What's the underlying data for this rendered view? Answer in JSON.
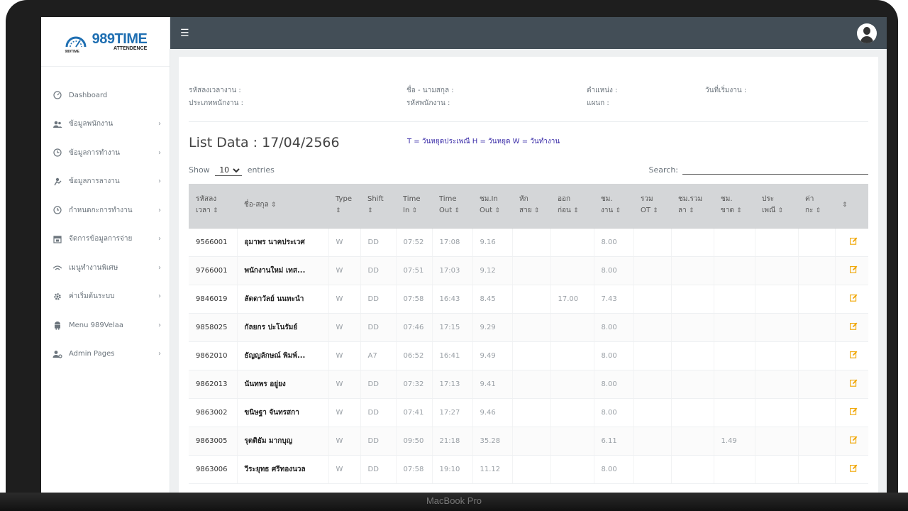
{
  "brand": {
    "name": "989TIME",
    "sub": "ATTENDENCE",
    "mini": "989TIME",
    "device": "MacBook Pro"
  },
  "sidebar": {
    "items": [
      {
        "label": "Dashboard",
        "icon": "dashboard-icon",
        "chevron": ""
      },
      {
        "label": "ข้อมูลพนักงาน",
        "icon": "users-icon",
        "chevron": "›"
      },
      {
        "label": "ข้อมูลการทำงาน",
        "icon": "clock-icon",
        "chevron": "›"
      },
      {
        "label": "ข้อมูลการลางาน",
        "icon": "leave-icon",
        "chevron": "›"
      },
      {
        "label": "กำหนดกะการทำงาน",
        "icon": "schedule-icon",
        "chevron": "›"
      },
      {
        "label": "จัดการข้อมูลการจ่าย",
        "icon": "calendar-icon",
        "chevron": "›"
      },
      {
        "label": "เมนูทำงานพิเศษ",
        "icon": "wifi-icon",
        "chevron": "›"
      },
      {
        "label": "ค่าเริ่มต้นระบบ",
        "icon": "gear-icon",
        "chevron": "›"
      },
      {
        "label": "Menu 989Velaa",
        "icon": "android-icon",
        "chevron": "›"
      },
      {
        "label": "Admin Pages",
        "icon": "admin-icon",
        "chevron": "›"
      }
    ]
  },
  "info": {
    "timecode": "รหัสลงเวลางาน :",
    "emptype": "ประเภทพนักงาน :",
    "fullname": "ชื่อ - นามสกุล :",
    "empid": "รหัสพนักงาน :",
    "position": "ตำแหน่ง :",
    "dept": "แผนก :",
    "startdate": "วันที่เริ่มงาน :"
  },
  "list": {
    "title": "List Data : 17/04/2566",
    "legend": "T = วันหยุดประเพณี   H = วันหยุด   W = วันทำงาน"
  },
  "controls": {
    "show_label": "Show",
    "show_value": "10",
    "entries_label": "entries",
    "search_label": "Search:"
  },
  "table": {
    "headers": [
      [
        "รหัสลง",
        "เวลา"
      ],
      [
        "",
        "ชื่อ-สกุล"
      ],
      [
        "Type",
        ""
      ],
      [
        "Shift",
        ""
      ],
      [
        "Time",
        "In"
      ],
      [
        "Time",
        "Out"
      ],
      [
        "ชม.In",
        "Out"
      ],
      [
        "หัก",
        "สาย"
      ],
      [
        "ออก",
        "ก่อน"
      ],
      [
        "ชม.",
        "งาน"
      ],
      [
        "รวม",
        "OT"
      ],
      [
        "ชม.รวม",
        "ลา"
      ],
      [
        "ชม.",
        "ขาด"
      ],
      [
        "ประ",
        "เพณี"
      ],
      [
        "ค่า",
        "กะ"
      ],
      [
        "",
        ""
      ]
    ],
    "sort_glyph": "⇕",
    "rows": [
      [
        "9566001",
        "อุมาพร นาคประเวศ",
        "W",
        "DD",
        "07:52",
        "17:08",
        "9.16",
        "",
        "",
        "8.00",
        "",
        "",
        "",
        "",
        ""
      ],
      [
        "9766001",
        "พนักงานใหม่ เทส...",
        "W",
        "DD",
        "07:51",
        "17:03",
        "9.12",
        "",
        "",
        "8.00",
        "",
        "",
        "",
        "",
        ""
      ],
      [
        "9846019",
        "ลัดดาวัลย์ นนทะนำ",
        "W",
        "DD",
        "07:58",
        "16:43",
        "8.45",
        "",
        "17.00",
        "7.43",
        "",
        "",
        "",
        "",
        ""
      ],
      [
        "9858025",
        "กัลยกร ปะโนรัมย์",
        "W",
        "DD",
        "07:46",
        "17:15",
        "9.29",
        "",
        "",
        "8.00",
        "",
        "",
        "",
        "",
        ""
      ],
      [
        "9862010",
        "ธัญญลักษณ์ พิมพ์...",
        "W",
        "A7",
        "06:52",
        "16:41",
        "9.49",
        "",
        "",
        "8.00",
        "",
        "",
        "",
        "",
        ""
      ],
      [
        "9862013",
        "นันทพร อยู่ยง",
        "W",
        "DD",
        "07:32",
        "17:13",
        "9.41",
        "",
        "",
        "8.00",
        "",
        "",
        "",
        "",
        ""
      ],
      [
        "9863002",
        "ขนิษฐา จันทรสกา",
        "W",
        "DD",
        "07:41",
        "17:27",
        "9.46",
        "",
        "",
        "8.00",
        "",
        "",
        "",
        "",
        ""
      ],
      [
        "9863005",
        "รุตติธัม มากบุญ",
        "W",
        "DD",
        "09:50",
        "21:18",
        "35.28",
        "",
        "",
        "6.11",
        "",
        "",
        "1.49",
        "",
        ""
      ],
      [
        "9863006",
        "วีระยุทธ ศรีทองนวล",
        "W",
        "DD",
        "07:58",
        "19:10",
        "11.12",
        "",
        "",
        "8.00",
        "",
        "",
        "",
        "",
        ""
      ]
    ]
  }
}
